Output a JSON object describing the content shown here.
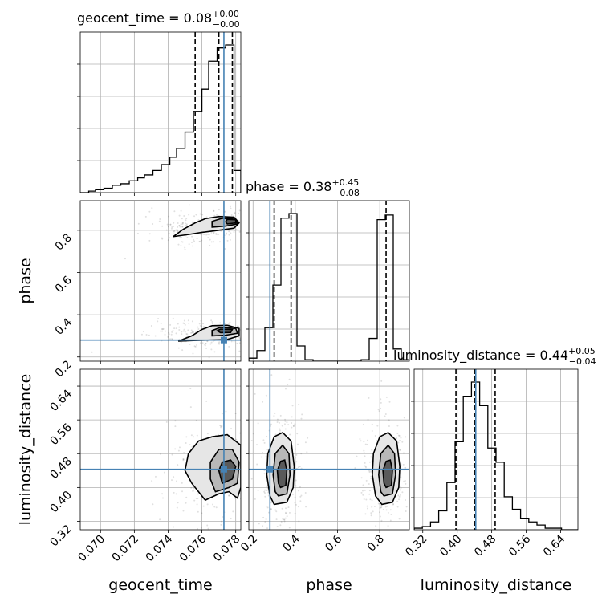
{
  "chart_data": {
    "type": "corner",
    "parameters": [
      {
        "name": "geocent_time",
        "label": "geocent_time",
        "range": [
          0.0688,
          0.0783
        ],
        "ticks": [
          "0.070",
          "0.072",
          "0.074",
          "0.076",
          "0.078"
        ],
        "tick_values": [
          0.07,
          0.072,
          0.074,
          0.076,
          0.078
        ],
        "truth": 0.0773,
        "quantiles": [
          0.0756,
          0.077,
          0.0778
        ],
        "title": {
          "prefix": "geocent_time = 0.08",
          "plus": "+0.00",
          "minus": "−0.00"
        },
        "hist": {
          "edges": [
            0.0688,
            0.0693,
            0.0697,
            0.0702,
            0.0707,
            0.0712,
            0.0717,
            0.0722,
            0.0726,
            0.0731,
            0.0736,
            0.0741,
            0.0745,
            0.075,
            0.0755,
            0.076,
            0.0764,
            0.0769,
            0.0774,
            0.0779,
            0.0783
          ],
          "counts": [
            0,
            0.01,
            0.02,
            0.03,
            0.05,
            0.06,
            0.08,
            0.1,
            0.12,
            0.15,
            0.19,
            0.24,
            0.3,
            0.41,
            0.55,
            0.7,
            0.89,
            0.98,
            1.0,
            0.15
          ]
        }
      },
      {
        "name": "phase",
        "label": "phase",
        "range": [
          0.18,
          0.94
        ],
        "ticks": [
          "0.2",
          "0.4",
          "0.6",
          "0.8"
        ],
        "tick_values": [
          0.2,
          0.4,
          0.6,
          0.8
        ],
        "truth": 0.28,
        "quantiles": [
          0.3,
          0.38,
          0.83
        ],
        "title": {
          "prefix": "phase = 0.38",
          "plus": "+0.45",
          "minus": "−0.08"
        },
        "hist": {
          "edges": [
            0.18,
            0.218,
            0.256,
            0.294,
            0.332,
            0.37,
            0.408,
            0.446,
            0.484,
            0.522,
            0.56,
            0.598,
            0.636,
            0.674,
            0.712,
            0.75,
            0.788,
            0.826,
            0.864,
            0.902,
            0.94
          ],
          "counts": [
            0.02,
            0.07,
            0.22,
            0.5,
            0.94,
            0.97,
            0.1,
            0.01,
            0,
            0,
            0,
            0,
            0,
            0,
            0.01,
            0.15,
            0.93,
            0.96,
            0.08,
            0.01
          ]
        }
      },
      {
        "name": "luminosity_distance",
        "label": "luminosity_distance",
        "range": [
          0.3,
          0.68
        ],
        "ticks": [
          "0.32",
          "0.40",
          "0.48",
          "0.56",
          "0.64"
        ],
        "tick_values": [
          0.32,
          0.4,
          0.48,
          0.56,
          0.64
        ],
        "truth": 0.443,
        "quantiles": [
          0.397,
          0.44,
          0.488
        ],
        "title": {
          "prefix": "luminosity_distance = 0.44",
          "plus": "+0.05",
          "minus": "−0.04"
        },
        "hist": {
          "edges": [
            0.3,
            0.319,
            0.338,
            0.357,
            0.376,
            0.395,
            0.414,
            0.433,
            0.452,
            0.471,
            0.49,
            0.509,
            0.528,
            0.547,
            0.566,
            0.585,
            0.604,
            0.623,
            0.642,
            0.661,
            0.68
          ],
          "counts": [
            0.01,
            0.02,
            0.05,
            0.12,
            0.3,
            0.56,
            0.85,
            0.94,
            0.79,
            0.52,
            0.43,
            0.21,
            0.13,
            0.07,
            0.05,
            0.03,
            0.01,
            0.01,
            0,
            0
          ]
        }
      }
    ],
    "pairs": [
      {
        "x": "geocent_time",
        "y": "phase",
        "contours": [
          {
            "level": "outer",
            "points": [
              [
                0.0743,
                0.77
              ],
              [
                0.0752,
                0.78
              ],
              [
                0.076,
                0.79
              ],
              [
                0.077,
                0.8
              ],
              [
                0.0779,
                0.81
              ],
              [
                0.0782,
                0.835
              ],
              [
                0.0779,
                0.862
              ],
              [
                0.077,
                0.865
              ],
              [
                0.0762,
                0.855
              ],
              [
                0.0756,
                0.835
              ],
              [
                0.0749,
                0.805
              ],
              [
                0.0743,
                0.77
              ]
            ]
          },
          {
            "level": "middle",
            "points": [
              [
                0.0766,
                0.815
              ],
              [
                0.0774,
                0.82
              ],
              [
                0.0781,
                0.83
              ],
              [
                0.078,
                0.852
              ],
              [
                0.0772,
                0.857
              ],
              [
                0.0766,
                0.842
              ],
              [
                0.0766,
                0.815
              ]
            ]
          },
          {
            "level": "inner",
            "points": [
              [
                0.0775,
                0.83
              ],
              [
                0.078,
                0.835
              ],
              [
                0.078,
                0.85
              ],
              [
                0.0775,
                0.852
              ],
              [
                0.0774,
                0.84
              ],
              [
                0.0775,
                0.83
              ]
            ]
          },
          {
            "level": "outer",
            "points": [
              [
                0.0746,
                0.275
              ],
              [
                0.0755,
                0.278
              ],
              [
                0.0765,
                0.28
              ],
              [
                0.0775,
                0.283
              ],
              [
                0.0782,
                0.3
              ],
              [
                0.0782,
                0.335
              ],
              [
                0.0775,
                0.35
              ],
              [
                0.0766,
                0.348
              ],
              [
                0.076,
                0.33
              ],
              [
                0.0754,
                0.3
              ],
              [
                0.0746,
                0.275
              ]
            ]
          },
          {
            "level": "middle",
            "points": [
              [
                0.0766,
                0.3
              ],
              [
                0.0774,
                0.303
              ],
              [
                0.0781,
                0.312
              ],
              [
                0.078,
                0.335
              ],
              [
                0.0771,
                0.34
              ],
              [
                0.0766,
                0.325
              ],
              [
                0.0766,
                0.3
              ]
            ]
          },
          {
            "level": "inner",
            "points": [
              [
                0.0771,
                0.315
              ],
              [
                0.0777,
                0.316
              ],
              [
                0.0778,
                0.33
              ],
              [
                0.0771,
                0.332
              ],
              [
                0.0769,
                0.324
              ],
              [
                0.0771,
                0.315
              ]
            ]
          }
        ]
      },
      {
        "x": "geocent_time",
        "y": "luminosity_distance",
        "contours": [
          {
            "level": "outer",
            "points": [
              [
                0.0762,
                0.37
              ],
              [
                0.077,
                0.385
              ],
              [
                0.0776,
                0.39
              ],
              [
                0.0781,
                0.375
              ],
              [
                0.0783,
                0.4
              ],
              [
                0.0783,
                0.5
              ],
              [
                0.0775,
                0.525
              ],
              [
                0.0766,
                0.52
              ],
              [
                0.0758,
                0.51
              ],
              [
                0.0752,
                0.48
              ],
              [
                0.075,
                0.44
              ],
              [
                0.0754,
                0.41
              ],
              [
                0.0762,
                0.37
              ]
            ]
          },
          {
            "level": "middle",
            "points": [
              [
                0.0768,
                0.39
              ],
              [
                0.0776,
                0.4
              ],
              [
                0.0781,
                0.41
              ],
              [
                0.0782,
                0.46
              ],
              [
                0.0778,
                0.49
              ],
              [
                0.077,
                0.49
              ],
              [
                0.0765,
                0.46
              ],
              [
                0.0765,
                0.42
              ],
              [
                0.0768,
                0.39
              ]
            ]
          },
          {
            "level": "inner",
            "points": [
              [
                0.0772,
                0.41
              ],
              [
                0.0778,
                0.42
              ],
              [
                0.078,
                0.45
              ],
              [
                0.0777,
                0.465
              ],
              [
                0.0772,
                0.46
              ],
              [
                0.077,
                0.44
              ],
              [
                0.0772,
                0.41
              ]
            ]
          }
        ]
      },
      {
        "x": "phase",
        "y": "luminosity_distance",
        "contours": [
          {
            "level": "outer",
            "points": [
              [
                0.3,
                0.36
              ],
              [
                0.36,
                0.365
              ],
              [
                0.39,
                0.4
              ],
              [
                0.395,
                0.45
              ],
              [
                0.38,
                0.51
              ],
              [
                0.34,
                0.53
              ],
              [
                0.3,
                0.52
              ],
              [
                0.27,
                0.48
              ],
              [
                0.265,
                0.43
              ],
              [
                0.28,
                0.38
              ],
              [
                0.3,
                0.36
              ]
            ]
          },
          {
            "level": "middle",
            "points": [
              [
                0.32,
                0.38
              ],
              [
                0.36,
                0.385
              ],
              [
                0.375,
                0.43
              ],
              [
                0.37,
                0.48
              ],
              [
                0.34,
                0.5
              ],
              [
                0.305,
                0.48
              ],
              [
                0.295,
                0.43
              ],
              [
                0.305,
                0.39
              ],
              [
                0.32,
                0.38
              ]
            ]
          },
          {
            "level": "inner",
            "points": [
              [
                0.33,
                0.4
              ],
              [
                0.355,
                0.405
              ],
              [
                0.36,
                0.44
              ],
              [
                0.35,
                0.465
              ],
              [
                0.33,
                0.462
              ],
              [
                0.315,
                0.44
              ],
              [
                0.32,
                0.41
              ],
              [
                0.33,
                0.4
              ]
            ]
          },
          {
            "level": "outer",
            "points": [
              [
                0.81,
                0.36
              ],
              [
                0.86,
                0.365
              ],
              [
                0.89,
                0.4
              ],
              [
                0.895,
                0.45
              ],
              [
                0.88,
                0.51
              ],
              [
                0.84,
                0.53
              ],
              [
                0.8,
                0.52
              ],
              [
                0.77,
                0.48
              ],
              [
                0.765,
                0.43
              ],
              [
                0.78,
                0.38
              ],
              [
                0.81,
                0.36
              ]
            ]
          },
          {
            "level": "middle",
            "points": [
              [
                0.82,
                0.38
              ],
              [
                0.86,
                0.385
              ],
              [
                0.875,
                0.43
              ],
              [
                0.87,
                0.48
              ],
              [
                0.84,
                0.5
              ],
              [
                0.805,
                0.48
              ],
              [
                0.795,
                0.43
              ],
              [
                0.805,
                0.39
              ],
              [
                0.82,
                0.38
              ]
            ]
          },
          {
            "level": "inner",
            "points": [
              [
                0.83,
                0.4
              ],
              [
                0.855,
                0.405
              ],
              [
                0.86,
                0.44
              ],
              [
                0.85,
                0.465
              ],
              [
                0.83,
                0.462
              ],
              [
                0.815,
                0.44
              ],
              [
                0.82,
                0.41
              ],
              [
                0.83,
                0.4
              ]
            ]
          }
        ]
      }
    ],
    "truth_color": "#4682b4",
    "grid": true
  }
}
